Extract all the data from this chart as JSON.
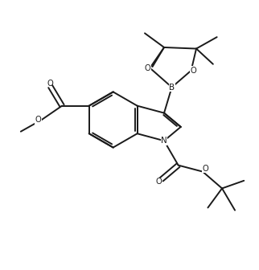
{
  "bg_color": "#ffffff",
  "line_color": "#1a1a1a",
  "line_width": 1.4,
  "figsize": [
    3.22,
    3.36
  ],
  "dpi": 100,
  "xlim": [
    0,
    10
  ],
  "ylim": [
    0,
    10.45
  ]
}
